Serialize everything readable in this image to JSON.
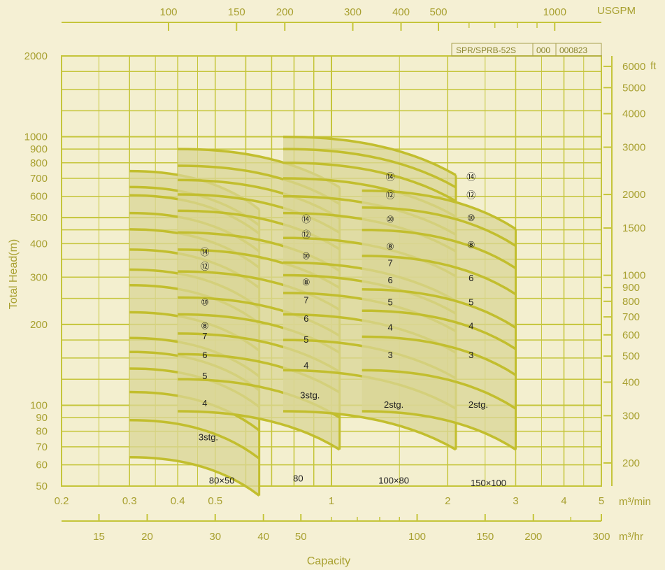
{
  "chart_data": {
    "type": "line",
    "title": "",
    "id_box": [
      "SPR/SPRB-52S",
      "000",
      "000823"
    ],
    "colors": {
      "grid": "#c5c53a",
      "curve": "#c2be2e",
      "fill": "#d9d596",
      "bg": "#f5f0d4",
      "text": "#a8a030"
    },
    "x_axes": {
      "top": {
        "unit": "USGPM",
        "ticks": [
          "100",
          "150",
          "200",
          "300",
          "400",
          "500",
          "1000"
        ],
        "values": [
          100,
          150,
          200,
          300,
          400,
          500,
          1000
        ],
        "range": [
          81.5,
          1320
        ]
      },
      "main": {
        "unit": "m³/min",
        "ticks": [
          "0.2",
          "0.3",
          "0.4",
          "0.5",
          "1",
          "2",
          "3",
          "4",
          "5"
        ],
        "values": [
          0.2,
          0.3,
          0.4,
          0.5,
          1,
          2,
          3,
          4,
          5
        ],
        "range": [
          0.2,
          5
        ],
        "scale": "log"
      },
      "bottom": {
        "unit": "m³/hr",
        "ticks": [
          "15",
          "20",
          "30",
          "40",
          "50",
          "100",
          "150",
          "200",
          "300"
        ],
        "values": [
          15,
          20,
          30,
          40,
          50,
          100,
          150,
          200,
          300
        ],
        "range": [
          12,
          300
        ]
      }
    },
    "y_axes": {
      "left": {
        "label": "Total Head(m)",
        "ticks": [
          "50",
          "60",
          "70",
          "80",
          "90",
          "100",
          "200",
          "300",
          "400",
          "500",
          "600",
          "700",
          "800",
          "900",
          "1000",
          "2000"
        ],
        "values": [
          50,
          60,
          70,
          80,
          90,
          100,
          200,
          300,
          400,
          500,
          600,
          700,
          800,
          900,
          1000,
          2000
        ],
        "range": [
          50,
          2000
        ],
        "scale": "log"
      },
      "right": {
        "unit": "ft",
        "ticks": [
          "200",
          "300",
          "400",
          "500",
          "600",
          "700",
          "800",
          "900",
          "1000",
          "1500",
          "2000",
          "3000",
          "4000",
          "5000",
          "6000"
        ],
        "values": [
          200,
          300,
          400,
          500,
          600,
          700,
          800,
          900,
          1000,
          1500,
          2000,
          3000,
          4000,
          5000,
          6000
        ]
      }
    },
    "x_label": "Capacity",
    "grid": true,
    "models": [
      {
        "name": "80×50",
        "q_range": [
          0.3,
          0.65
        ],
        "label_at": [
          0.52,
          51
        ],
        "stages": [
          {
            "label": "3stg.",
            "head": 64,
            "label_at": [
              0.48,
              74
            ]
          },
          {
            "label": "4",
            "head": 88,
            "label_at": [
              0.47,
              99
            ]
          },
          {
            "label": "5",
            "head": 112,
            "label_at": [
              0.47,
              125
            ]
          },
          {
            "label": "6",
            "head": 137,
            "label_at": [
              0.47,
              150
            ]
          },
          {
            "label": "7",
            "head": 158,
            "label_at": [
              0.47,
              176
            ]
          },
          {
            "label": "⑧",
            "head": 178,
            "label_at": [
              0.47,
              192
            ]
          },
          {
            "label": "⑩",
            "head": 222,
            "label_at": [
              0.47,
              236
            ]
          },
          {
            "label": "⑫",
            "head": 280,
            "label_at": [
              0.47,
              320
            ]
          },
          {
            "label": "⑭",
            "head": 320,
            "label_at": [
              0.47,
              362
            ]
          },
          {
            "label": "",
            "head": 380
          },
          {
            "label": "",
            "head": 452
          },
          {
            "label": "",
            "head": 520
          },
          {
            "label": "",
            "head": 605
          },
          {
            "label": "",
            "head": 650
          },
          {
            "label": "",
            "head": 745
          }
        ]
      },
      {
        "name": "80",
        "q_range": [
          0.4,
          1.05
        ],
        "label_at": [
          0.82,
          52
        ],
        "stages": [
          {
            "label": "3stg.",
            "head": 95,
            "label_at": [
              0.88,
              106
            ]
          },
          {
            "label": "4",
            "head": 125,
            "label_at": [
              0.86,
              137
            ]
          },
          {
            "label": "5",
            "head": 155,
            "label_at": [
              0.86,
              171
            ]
          },
          {
            "label": "6",
            "head": 185,
            "label_at": [
              0.86,
              205
            ]
          },
          {
            "label": "7",
            "head": 218,
            "label_at": [
              0.86,
              240
            ]
          },
          {
            "label": "⑧",
            "head": 252,
            "label_at": [
              0.86,
              280
            ]
          },
          {
            "label": "⑩",
            "head": 315,
            "label_at": [
              0.86,
              350
            ]
          },
          {
            "label": "⑫",
            "head": 380,
            "label_at": [
              0.86,
              420
            ]
          },
          {
            "label": "⑭",
            "head": 440,
            "label_at": [
              0.86,
              480
            ]
          },
          {
            "label": "",
            "head": 530
          },
          {
            "label": "",
            "head": 610
          },
          {
            "label": "",
            "head": 690
          },
          {
            "label": "",
            "head": 780
          },
          {
            "label": "",
            "head": 900
          }
        ]
      },
      {
        "name": "100×80",
        "q_range": [
          0.75,
          2.1
        ],
        "label_at": [
          1.45,
          51
        ],
        "stages": [
          {
            "label": "2stg.",
            "head": 95,
            "label_at": [
              1.45,
              98
            ]
          },
          {
            "label": "3",
            "head": 135,
            "label_at": [
              1.42,
              150
            ]
          },
          {
            "label": "4",
            "head": 175,
            "label_at": [
              1.42,
              190
            ]
          },
          {
            "label": "5",
            "head": 218,
            "label_at": [
              1.42,
              236
            ]
          },
          {
            "label": "6",
            "head": 262,
            "label_at": [
              1.42,
              285
            ]
          },
          {
            "label": "7",
            "head": 305,
            "label_at": [
              1.42,
              330
            ]
          },
          {
            "label": "⑧",
            "head": 340,
            "label_at": [
              1.42,
              380
            ]
          },
          {
            "label": "⑩",
            "head": 420,
            "label_at": [
              1.42,
              480
            ]
          },
          {
            "label": "⑫",
            "head": 520,
            "label_at": [
              1.42,
              590
            ]
          },
          {
            "label": "⑭",
            "head": 600,
            "label_at": [
              1.42,
              690
            ]
          },
          {
            "label": "",
            "head": 700
          },
          {
            "label": "",
            "head": 800
          },
          {
            "label": "",
            "head": 900
          },
          {
            "label": "",
            "head": 1000
          }
        ]
      },
      {
        "name": "150×100",
        "q_range": [
          1.2,
          3.0
        ],
        "label_at": [
          2.55,
          50
        ],
        "stages": [
          {
            "label": "2stg.",
            "head": 95,
            "label_at": [
              2.4,
              98
            ]
          },
          {
            "label": "3",
            "head": 135,
            "label_at": [
              2.3,
              150
            ]
          },
          {
            "label": "4",
            "head": 180,
            "label_at": [
              2.3,
              192
            ]
          },
          {
            "label": "5",
            "head": 225,
            "label_at": [
              2.3,
              236
            ]
          },
          {
            "label": "6",
            "head": 270,
            "label_at": [
              2.3,
              290
            ]
          },
          {
            "label": "⑧",
            "head": 360,
            "label_at": [
              2.3,
              385
            ]
          },
          {
            "label": "⑩",
            "head": 450,
            "label_at": [
              2.3,
              485
            ]
          },
          {
            "label": "⑫",
            "head": 545,
            "label_at": [
              2.3,
              590
            ]
          },
          {
            "label": "⑭",
            "head": 630,
            "label_at": [
              2.3,
              690
            ]
          }
        ]
      }
    ]
  }
}
